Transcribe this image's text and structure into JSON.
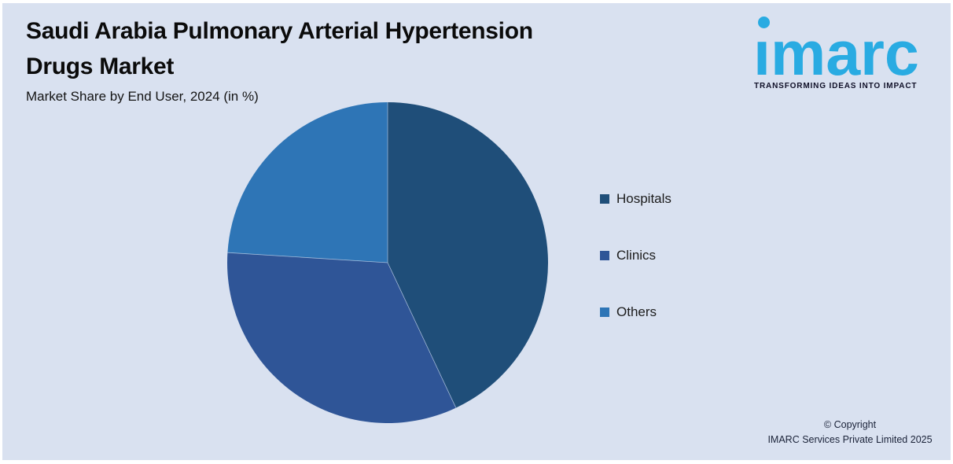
{
  "header": {
    "title_line1": "Saudi Arabia Pulmonary Arterial Hypertension",
    "title_line2": "Drugs Market",
    "subtitle": "Market Share by End User, 2024 (in %)"
  },
  "logo": {
    "wordmark": "ımarc",
    "tagline": "TRANSFORMING IDEAS INTO IMPACT",
    "brand_color": "#29ABE2"
  },
  "chart_data": {
    "type": "pie",
    "title": "Market Share by End User, 2024 (in %)",
    "categories": [
      "Hospitals",
      "Clinics",
      "Others"
    ],
    "values": [
      43,
      33,
      24
    ],
    "unit": "%",
    "colors": [
      "#1F4E79",
      "#2F5597",
      "#2E75B6"
    ],
    "start_angle_deg": -90,
    "direction": "clockwise",
    "legend_position": "right",
    "slice_divider_color": "#c9d8ec"
  },
  "legend": {
    "items": [
      {
        "label": "Hospitals",
        "color": "#1F4E79"
      },
      {
        "label": "Clinics",
        "color": "#2F5597"
      },
      {
        "label": "Others",
        "color": "#2E75B6"
      }
    ]
  },
  "footer": {
    "line1": "© Copyright",
    "line2": "IMARC Services Private Limited 2025"
  },
  "colors": {
    "background": "#D9E1F0",
    "frame": "#FFFFFF",
    "title_text": "#0b0b0b"
  }
}
